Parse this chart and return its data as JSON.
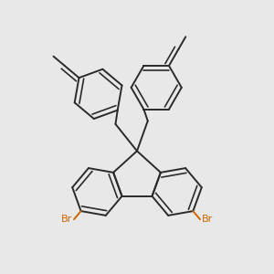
{
  "background_color": "#e8e8e8",
  "line_color": "#2a2a2a",
  "br_color": "#cc6600",
  "line_width": 1.4,
  "figsize": [
    3.0,
    3.0
  ],
  "dpi": 100,
  "xlim": [
    -1.1,
    1.1
  ],
  "ylim": [
    -1.3,
    1.2
  ]
}
